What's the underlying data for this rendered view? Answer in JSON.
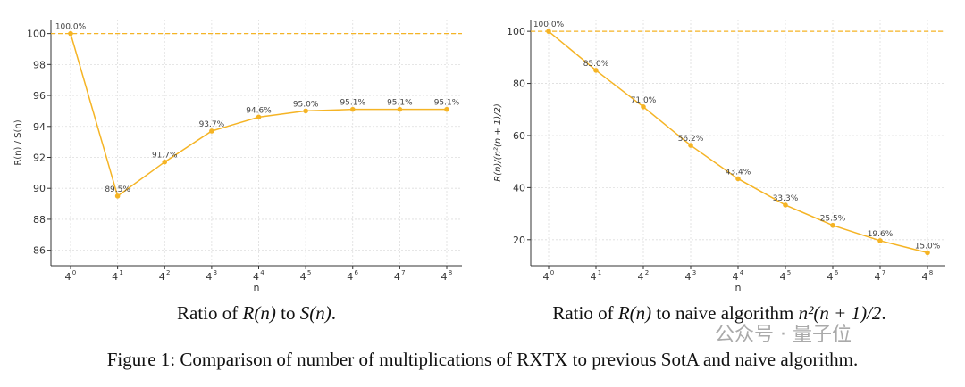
{
  "chart_data": [
    {
      "type": "line",
      "categories": [
        "4^0",
        "4^1",
        "4^2",
        "4^3",
        "4^4",
        "4^5",
        "4^6",
        "4^7",
        "4^8"
      ],
      "values": [
        100.0,
        89.5,
        91.7,
        93.7,
        94.6,
        95.0,
        95.1,
        95.1,
        95.1
      ],
      "data_labels": [
        "100.0%",
        "89.5%",
        "91.7%",
        "93.7%",
        "94.6%",
        "95.0%",
        "95.1%",
        "95.1%",
        "95.1%"
      ],
      "xlabel": "n",
      "ylabel": "R(n) / S(n)",
      "ylim": [
        85,
        100.9
      ],
      "yticks": [
        86,
        88,
        90,
        92,
        94,
        96,
        98,
        100
      ],
      "reference_line": 100,
      "grid": true,
      "color": "#f5b425",
      "caption": {
        "pre": "Ratio of ",
        "a": "R(n)",
        "mid": " to ",
        "b": "S(n)",
        "post": "."
      }
    },
    {
      "type": "line",
      "categories": [
        "4^0",
        "4^1",
        "4^2",
        "4^3",
        "4^4",
        "4^5",
        "4^6",
        "4^7",
        "4^8"
      ],
      "values": [
        100.0,
        85.0,
        71.0,
        56.2,
        43.4,
        33.3,
        25.5,
        19.6,
        15.0
      ],
      "data_labels": [
        "100.0%",
        "85.0%",
        "71.0%",
        "56.2%",
        "43.4%",
        "33.3%",
        "25.5%",
        "19.6%",
        "15.0%"
      ],
      "xlabel": "n",
      "ylabel": "R(n)/(n²(n + 1)/2)",
      "ylim": [
        10,
        104.5
      ],
      "yticks": [
        20,
        40,
        60,
        80,
        100
      ],
      "reference_line": 100,
      "grid": true,
      "color": "#f5b425",
      "caption": {
        "pre": "Ratio of ",
        "a": "R(n)",
        "mid": " to naive algorithm ",
        "b": "n²(n + 1)/2",
        "post": "."
      }
    }
  ],
  "figure_caption": "Figure 1: Comparison of number of multiplications of RXTX to previous SotA and naive algorithm.",
  "watermark": "公众号 · 量子位"
}
